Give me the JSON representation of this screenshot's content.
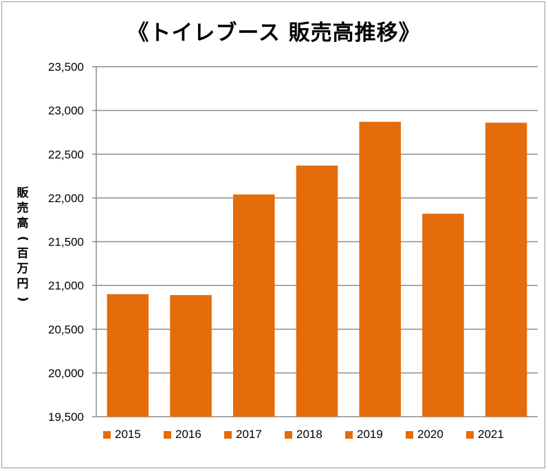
{
  "chart_data": {
    "type": "bar",
    "title": "《トイレブース 販売高推移》",
    "ylabel": "販売高(百万円)",
    "xlabel": "",
    "categories": [
      "2015",
      "2016",
      "2017",
      "2018",
      "2019",
      "2020",
      "2021"
    ],
    "values": [
      20900,
      20890,
      22040,
      22370,
      22870,
      21820,
      22860
    ],
    "ylim": [
      19500,
      23500
    ],
    "yticks": [
      19500,
      20000,
      20500,
      21000,
      21500,
      22000,
      22500,
      23000,
      23500
    ],
    "ytick_labels": [
      "19,500",
      "20,000",
      "20,500",
      "21,000",
      "21,500",
      "22,000",
      "22,500",
      "23,000",
      "23,500"
    ],
    "bar_color": "#E46C0A",
    "grid": true,
    "legend": {
      "placement": "bottom",
      "entries": [
        "2015",
        "2016",
        "2017",
        "2018",
        "2019",
        "2020",
        "2021"
      ]
    }
  }
}
